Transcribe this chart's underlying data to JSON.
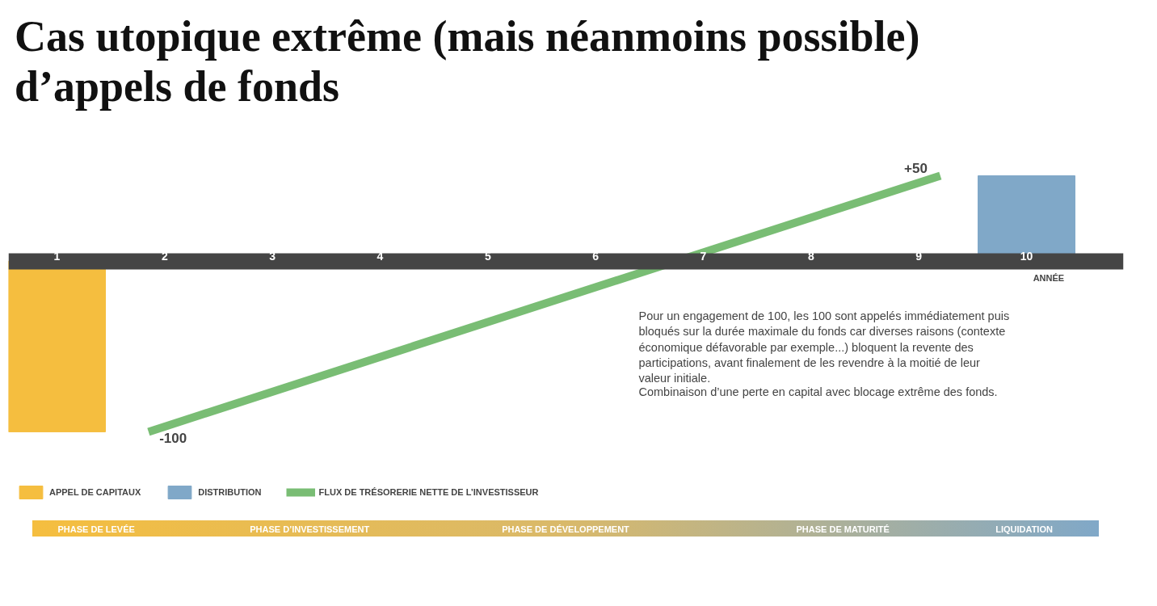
{
  "chart_data": {
    "type": "bar",
    "title": "Cas utopique extrême (mais néanmoins possible) d’appels de fonds",
    "xlabel": "ANNÉE",
    "xlim": [
      0.55,
      10.9
    ],
    "xticks": [
      1,
      2,
      3,
      4,
      5,
      6,
      7,
      8,
      9,
      10
    ],
    "tick_labels": "x",
    "grid": false,
    "legend": "bottom",
    "series": [
      {
        "name": "APPEL DE CAPITAUX",
        "color": "#f5be3f",
        "x": [
          1
        ],
        "values": [
          -100
        ]
      },
      {
        "name": "DISTRIBUTION",
        "color": "#80a8c8",
        "x": [
          10
        ],
        "values": [
          50
        ]
      },
      {
        "name": "FLUX DE TRÉSORERIE NETTE DE L’INVESTISSEUR",
        "type": "line",
        "color": "#79bd74",
        "x": [
          1.85,
          9.2
        ],
        "values": [
          -100,
          50
        ],
        "value_labels": [
          "-100",
          "+50"
        ]
      }
    ],
    "annotations": [
      "Pour un engagement de 100, les 100 sont appelés immédiatement puis bloqués sur la durée maximale du fonds car diverses raisons (contexte économique défavorable par exemple...) bloquent la revente des participations, avant finalement de les revendre à la moitié de leur valeur initiale.",
      "Combinaison d’une perte en capital avec blocage extrême des fonds.",
      "PHASE DE LEVÉE",
      "PHASE D’INVESTISSEMENT",
      "PHASE DE DÉVELOPPEMENT",
      "PHASE DE MATURITÉ",
      "LIQUIDATION"
    ]
  }
}
